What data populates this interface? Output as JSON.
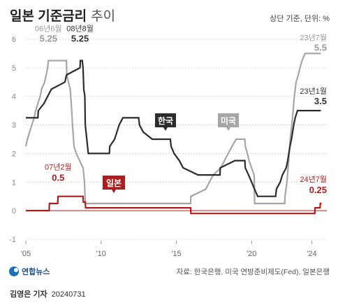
{
  "title": {
    "main": "일본 기준금리",
    "sub": "추이"
  },
  "unit_label": "상단 기준, 단위: %",
  "source": "자료: 한국은행, 미국 연방준비제도(Fed), 일본은행",
  "credit": {
    "reporter": "김영은 기자",
    "date": "20240731"
  },
  "logo": {
    "text": "연합뉴스"
  },
  "colors": {
    "korea": "#2b2b2b",
    "us": "#a6a6a6",
    "japan": "#b01c1c",
    "zero_line": "#b01c1c"
  },
  "series_tags": {
    "korea": "한국",
    "us": "미국",
    "japan": "일본"
  },
  "annotations": {
    "us_2006": {
      "date": "06년6월",
      "value": "5.25"
    },
    "korea_2008": {
      "date": "08년8월",
      "value": "5.25"
    },
    "japan_2007": {
      "date": "07년2월",
      "value": "0.5"
    },
    "us_2023": {
      "date": "23년7월",
      "value": "5.5"
    },
    "korea_2023": {
      "date": "23년1월",
      "value": "3.5"
    },
    "japan_2024": {
      "date": "24년7월",
      "value": "0.25"
    }
  },
  "chart_data": {
    "type": "line",
    "xlim": [
      2005.0,
      2025.0
    ],
    "ylim": [
      -1,
      6
    ],
    "yticks": [
      "-1",
      "0",
      "1",
      "2",
      "3",
      "4",
      "5",
      "6"
    ],
    "xticks": [
      {
        "x": 2005,
        "label": "'05"
      },
      {
        "x": 2010,
        "label": "'10"
      },
      {
        "x": 2015,
        "label": "'15"
      },
      {
        "x": 2020,
        "label": "'20"
      },
      {
        "x": 2024,
        "label": "'24"
      }
    ],
    "series": [
      {
        "name": "미국",
        "key": "us",
        "points": [
          [
            2005.0,
            2.25
          ],
          [
            2005.1,
            2.5
          ],
          [
            2005.25,
            2.75
          ],
          [
            2005.4,
            3.0
          ],
          [
            2005.55,
            3.25
          ],
          [
            2005.65,
            3.5
          ],
          [
            2005.8,
            3.75
          ],
          [
            2005.95,
            4.0
          ],
          [
            2006.05,
            4.25
          ],
          [
            2006.25,
            4.5
          ],
          [
            2006.35,
            4.75
          ],
          [
            2006.45,
            5.0
          ],
          [
            2006.5,
            5.25
          ],
          [
            2007.7,
            5.25
          ],
          [
            2007.72,
            4.75
          ],
          [
            2007.83,
            4.5
          ],
          [
            2007.95,
            4.25
          ],
          [
            2008.05,
            3.5
          ],
          [
            2008.1,
            3.0
          ],
          [
            2008.2,
            2.25
          ],
          [
            2008.35,
            2.0
          ],
          [
            2008.8,
            1.5
          ],
          [
            2008.9,
            1.0
          ],
          [
            2008.95,
            0.25
          ],
          [
            2015.95,
            0.25
          ],
          [
            2015.96,
            0.5
          ],
          [
            2016.95,
            0.75
          ],
          [
            2017.2,
            1.0
          ],
          [
            2017.45,
            1.25
          ],
          [
            2017.95,
            1.5
          ],
          [
            2018.2,
            1.75
          ],
          [
            2018.45,
            2.0
          ],
          [
            2018.7,
            2.25
          ],
          [
            2018.97,
            2.5
          ],
          [
            2019.55,
            2.5
          ],
          [
            2019.58,
            2.25
          ],
          [
            2019.72,
            2.0
          ],
          [
            2019.83,
            1.75
          ],
          [
            2020.17,
            1.25
          ],
          [
            2020.2,
            0.25
          ],
          [
            2022.2,
            0.25
          ],
          [
            2022.22,
            0.5
          ],
          [
            2022.35,
            1.0
          ],
          [
            2022.46,
            1.75
          ],
          [
            2022.57,
            2.5
          ],
          [
            2022.72,
            3.25
          ],
          [
            2022.84,
            4.0
          ],
          [
            2022.96,
            4.5
          ],
          [
            2023.1,
            4.75
          ],
          [
            2023.22,
            5.0
          ],
          [
            2023.35,
            5.25
          ],
          [
            2023.55,
            5.5
          ],
          [
            2024.6,
            5.5
          ]
        ]
      },
      {
        "name": "한국",
        "key": "korea",
        "points": [
          [
            2005.0,
            3.25
          ],
          [
            2005.8,
            3.25
          ],
          [
            2005.83,
            3.5
          ],
          [
            2006.2,
            3.75
          ],
          [
            2006.45,
            4.0
          ],
          [
            2006.7,
            4.25
          ],
          [
            2007.6,
            4.5
          ],
          [
            2007.7,
            4.75
          ],
          [
            2008.6,
            5.0
          ],
          [
            2008.62,
            5.25
          ],
          [
            2008.75,
            5.25
          ],
          [
            2008.8,
            5.0
          ],
          [
            2008.85,
            4.25
          ],
          [
            2008.92,
            4.0
          ],
          [
            2008.95,
            3.0
          ],
          [
            2009.05,
            2.5
          ],
          [
            2009.15,
            2.0
          ],
          [
            2010.55,
            2.0
          ],
          [
            2010.58,
            2.25
          ],
          [
            2010.9,
            2.5
          ],
          [
            2011.05,
            2.75
          ],
          [
            2011.2,
            3.0
          ],
          [
            2011.45,
            3.25
          ],
          [
            2012.5,
            3.25
          ],
          [
            2012.55,
            3.0
          ],
          [
            2012.8,
            2.75
          ],
          [
            2013.4,
            2.5
          ],
          [
            2014.6,
            2.5
          ],
          [
            2014.65,
            2.25
          ],
          [
            2014.85,
            2.0
          ],
          [
            2015.2,
            1.75
          ],
          [
            2015.45,
            1.5
          ],
          [
            2016.45,
            1.25
          ],
          [
            2017.9,
            1.25
          ],
          [
            2017.92,
            1.5
          ],
          [
            2018.9,
            1.75
          ],
          [
            2019.55,
            1.75
          ],
          [
            2019.58,
            1.5
          ],
          [
            2019.8,
            1.25
          ],
          [
            2020.2,
            0.75
          ],
          [
            2020.4,
            0.5
          ],
          [
            2021.6,
            0.5
          ],
          [
            2021.65,
            0.75
          ],
          [
            2021.9,
            1.0
          ],
          [
            2022.05,
            1.25
          ],
          [
            2022.3,
            1.5
          ],
          [
            2022.4,
            1.75
          ],
          [
            2022.55,
            2.25
          ],
          [
            2022.65,
            2.5
          ],
          [
            2022.8,
            3.0
          ],
          [
            2022.9,
            3.25
          ],
          [
            2023.05,
            3.5
          ],
          [
            2024.6,
            3.5
          ]
        ]
      },
      {
        "name": "일본",
        "key": "japan",
        "points": [
          [
            2005.0,
            0.0
          ],
          [
            2006.55,
            0.0
          ],
          [
            2006.57,
            0.25
          ],
          [
            2007.12,
            0.25
          ],
          [
            2007.14,
            0.5
          ],
          [
            2008.8,
            0.5
          ],
          [
            2008.82,
            0.3
          ],
          [
            2008.95,
            0.3
          ],
          [
            2008.97,
            0.1
          ],
          [
            2015.95,
            0.1
          ],
          [
            2015.97,
            -0.1
          ],
          [
            2024.2,
            -0.1
          ],
          [
            2024.22,
            0.1
          ],
          [
            2024.55,
            0.1
          ],
          [
            2024.57,
            0.25
          ],
          [
            2024.65,
            0.25
          ]
        ]
      }
    ]
  }
}
